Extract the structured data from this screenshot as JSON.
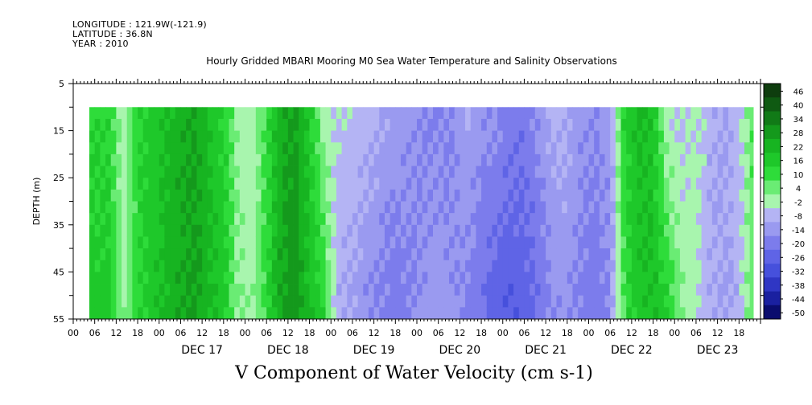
{
  "meta": {
    "longitude": "LONGITUDE : 121.9W(-121.9)",
    "latitude": "LATITUDE : 36.8N",
    "year": "YEAR : 2010"
  },
  "chart_data": {
    "type": "heatmap",
    "title": "Hourly Gridded MBARI Mooring M0 Sea Water Temperature and Salinity Observations",
    "xlabel": "V Component of Water Velocity (cm s-1)",
    "ylabel": "DEPTH (m)",
    "y_range": [
      5,
      55
    ],
    "y_inverted": true,
    "y_ticks": [
      "5",
      "15",
      "25",
      "35",
      "45",
      "55"
    ],
    "x_range_hours": [
      "DEC 16 00",
      "DEC 23 24"
    ],
    "x_hour_ticks": [
      "00",
      "06",
      "12",
      "18",
      "00",
      "06",
      "12",
      "18",
      "00",
      "06",
      "12",
      "18",
      "00",
      "06",
      "12",
      "18",
      "00",
      "06",
      "12",
      "18",
      "00",
      "06",
      "12",
      "18",
      "00",
      "06",
      "12",
      "18",
      "00",
      "06",
      "12",
      "18"
    ],
    "x_day_labels": [
      "DEC 17",
      "DEC 18",
      "DEC 19",
      "DEC 20",
      "DEC 21",
      "DEC 22",
      "DEC 23"
    ],
    "data_depth_range": [
      10,
      55
    ],
    "data_time_range_hours": [
      4.5,
      190
    ],
    "colorbar": {
      "labels": [
        "46",
        "40",
        "34",
        "28",
        "22",
        "16",
        "10",
        "4",
        "-2",
        "-8",
        "-14",
        "-20",
        "-26",
        "-32",
        "-38",
        "-44",
        "-50"
      ],
      "colors": [
        "#0e3d0e",
        "#0f5a12",
        "#117a17",
        "#14991c",
        "#17b421",
        "#1ec82a",
        "#2edc3a",
        "#6aec74",
        "#a8f5ae",
        "#b4b4f4",
        "#9a9af0",
        "#7c7cec",
        "#5f64e6",
        "#4650dc",
        "#2f36c4",
        "#1a20a0",
        "#0a0c6e"
      ]
    },
    "v_profile_hours": [
      4.5,
      10,
      14,
      18,
      22,
      26,
      30,
      34,
      38,
      42,
      46,
      50,
      54,
      58,
      62,
      66,
      70,
      74,
      78,
      82,
      86,
      90,
      94,
      98,
      102,
      106,
      110,
      114,
      118,
      122,
      126,
      130,
      134,
      138,
      142,
      146,
      150,
      154,
      158,
      162,
      166,
      170,
      174,
      178,
      182,
      186,
      190
    ],
    "v_surface": [
      8,
      10,
      -6,
      9,
      12,
      16,
      20,
      22,
      15,
      10,
      -4,
      -6,
      6,
      20,
      24,
      12,
      -5,
      -8,
      -9,
      -10,
      -14,
      -16,
      -18,
      -20,
      -22,
      -20,
      -14,
      -18,
      -20,
      -22,
      -24,
      -18,
      -12,
      -14,
      -18,
      -20,
      -16,
      10,
      18,
      14,
      -8,
      -10,
      -6,
      -12,
      -14,
      -10,
      4
    ],
    "v_bottom": [
      14,
      12,
      -4,
      8,
      14,
      18,
      22,
      24,
      18,
      14,
      -2,
      -4,
      8,
      22,
      26,
      16,
      10,
      -14,
      -16,
      -20,
      -22,
      -24,
      -22,
      -18,
      -16,
      -18,
      -22,
      -26,
      -30,
      -32,
      -30,
      -26,
      -20,
      -18,
      -22,
      -24,
      -20,
      6,
      14,
      16,
      12,
      -2,
      -6,
      -14,
      -16,
      -12,
      2
    ]
  }
}
